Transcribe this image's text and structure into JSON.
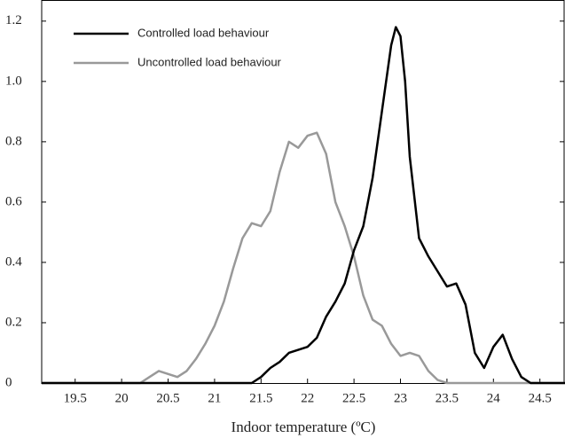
{
  "chart_data": {
    "type": "line",
    "xlabel": "Indoor temperature (ºC)",
    "xlim": [
      19.14,
      24.77
    ],
    "ylim": [
      0,
      1.27
    ],
    "xticks": [
      19.5,
      20,
      20.5,
      21,
      21.5,
      22,
      22.5,
      23,
      23.5,
      24,
      24.5
    ],
    "yticks": [
      0,
      0.2,
      0.4,
      0.6,
      0.8,
      {
        "value": 1,
        "label": "1.0"
      },
      1.2
    ],
    "legend": "upper left",
    "series": [
      {
        "name": "Controlled load behaviour",
        "color": "#000000",
        "x": [
          19.14,
          21.4,
          21.5,
          21.6,
          21.7,
          21.8,
          21.9,
          22.0,
          22.1,
          22.2,
          22.3,
          22.4,
          22.5,
          22.6,
          22.7,
          22.8,
          22.9,
          22.95,
          23.0,
          23.05,
          23.1,
          23.2,
          23.3,
          23.4,
          23.5,
          23.6,
          23.7,
          23.75,
          23.8,
          23.9,
          24.0,
          24.1,
          24.2,
          24.3,
          24.4,
          24.77
        ],
        "values": [
          0,
          0,
          0.02,
          0.05,
          0.07,
          0.1,
          0.11,
          0.12,
          0.15,
          0.22,
          0.27,
          0.33,
          0.44,
          0.52,
          0.68,
          0.9,
          1.12,
          1.18,
          1.15,
          1.0,
          0.75,
          0.48,
          0.42,
          0.37,
          0.32,
          0.33,
          0.26,
          0.18,
          0.1,
          0.05,
          0.12,
          0.16,
          0.08,
          0.02,
          0,
          0
        ]
      },
      {
        "name": "Uncontrolled load behaviour",
        "color": "#999999",
        "x": [
          19.14,
          20.2,
          20.3,
          20.4,
          20.5,
          20.6,
          20.7,
          20.8,
          20.9,
          21.0,
          21.1,
          21.2,
          21.3,
          21.4,
          21.5,
          21.6,
          21.7,
          21.8,
          21.9,
          22.0,
          22.1,
          22.2,
          22.3,
          22.4,
          22.5,
          22.6,
          22.7,
          22.8,
          22.9,
          23.0,
          23.1,
          23.2,
          23.3,
          23.4,
          23.5,
          24.77
        ],
        "values": [
          0,
          0,
          0.02,
          0.04,
          0.03,
          0.02,
          0.04,
          0.08,
          0.13,
          0.19,
          0.27,
          0.38,
          0.48,
          0.53,
          0.52,
          0.57,
          0.7,
          0.8,
          0.78,
          0.82,
          0.83,
          0.76,
          0.6,
          0.52,
          0.42,
          0.29,
          0.21,
          0.19,
          0.13,
          0.09,
          0.1,
          0.09,
          0.04,
          0.01,
          0,
          0
        ]
      }
    ]
  }
}
